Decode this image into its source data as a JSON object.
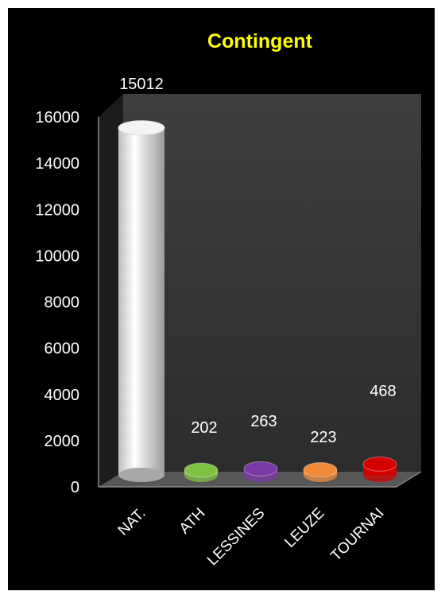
{
  "chart_data": {
    "type": "bar",
    "title": "Contingent",
    "categories": [
      "NAT.",
      "ATH",
      "LESSINES",
      "LEUZE",
      "TOURNAI"
    ],
    "values": [
      15012,
      202,
      263,
      223,
      468
    ],
    "data_labels": [
      "15012",
      "202",
      "263",
      "223",
      "468"
    ],
    "ylim": [
      0,
      16000
    ],
    "yticks": [
      "0",
      "2000",
      "4000",
      "6000",
      "8000",
      "10000",
      "12000",
      "14000",
      "16000"
    ],
    "xlabel": "",
    "ylabel": "",
    "grid": false,
    "legend": "none",
    "colors": {
      "background": "#000000",
      "plot_wall": "#3a3a3a",
      "title": "#ffff00",
      "text": "#ffffff",
      "bars": [
        "#f0f0f0",
        "#7dc242",
        "#7a3aa6",
        "#f08a3a",
        "#d40000"
      ]
    }
  }
}
